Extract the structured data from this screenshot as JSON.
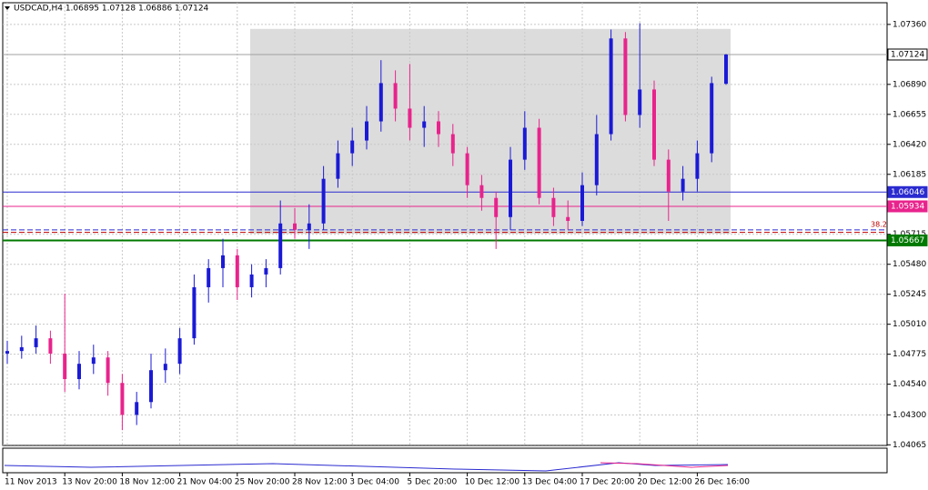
{
  "chart_data": {
    "type": "candlestick",
    "title": "USDCAD,H4  1.06895 1.07128 1.06886 1.07124",
    "up_color": "#1a1ad6",
    "down_color": "#e8238c",
    "open": [
      1.0478,
      1.048,
      1.0483,
      1.049,
      1.0478,
      1.0458,
      1.047,
      1.0475,
      1.0455,
      1.043,
      1.044,
      1.0465,
      1.047,
      1.049,
      1.053,
      1.0545,
      1.0555,
      1.053,
      1.054,
      1.0545,
      1.058,
      1.0575,
      1.058,
      1.0615,
      1.0635,
      1.0645,
      1.066,
      1.069,
      1.067,
      1.0655,
      1.066,
      1.065,
      1.0635,
      1.061,
      1.06,
      1.0585,
      1.063,
      1.0655,
      1.06,
      1.0585,
      1.0582,
      1.061,
      1.065,
      1.0725,
      1.0665,
      1.0685,
      1.063,
      1.0605,
      1.0615,
      1.0635,
      1.06895
    ],
    "high": [
      1.0488,
      1.0492,
      1.05,
      1.0496,
      1.0525,
      1.048,
      1.0485,
      1.048,
      1.0462,
      1.0448,
      1.0478,
      1.0482,
      1.0498,
      1.054,
      1.0552,
      1.0568,
      1.056,
      1.0548,
      1.0552,
      1.0598,
      1.0592,
      1.0595,
      1.0625,
      1.0645,
      1.0655,
      1.0672,
      1.0708,
      1.07,
      1.0705,
      1.0672,
      1.0668,
      1.0658,
      1.064,
      1.0618,
      1.0605,
      1.064,
      1.0668,
      1.0662,
      1.0608,
      1.0598,
      1.062,
      1.0665,
      1.0732,
      1.073,
      1.0737,
      1.0692,
      1.0638,
      1.0625,
      1.0645,
      1.0695,
      1.07128
    ],
    "low": [
      1.047,
      1.0474,
      1.0478,
      1.047,
      1.0448,
      1.045,
      1.0462,
      1.0445,
      1.0418,
      1.0422,
      1.0435,
      1.0455,
      1.0462,
      1.0485,
      1.0518,
      1.053,
      1.052,
      1.0522,
      1.053,
      1.054,
      1.0568,
      1.056,
      1.0575,
      1.0608,
      1.0625,
      1.0638,
      1.0652,
      1.066,
      1.0645,
      1.064,
      1.064,
      1.0625,
      1.06,
      1.059,
      1.056,
      1.0575,
      1.0622,
      1.0595,
      1.0578,
      1.0575,
      1.0578,
      1.0602,
      1.0645,
      1.066,
      1.0655,
      1.0625,
      1.0582,
      1.0598,
      1.0605,
      1.0628,
      1.06886
    ],
    "close": [
      1.048,
      1.0483,
      1.049,
      1.0478,
      1.0458,
      1.047,
      1.0475,
      1.0455,
      1.043,
      1.044,
      1.0465,
      1.047,
      1.049,
      1.053,
      1.0545,
      1.0555,
      1.053,
      1.054,
      1.0545,
      1.058,
      1.0575,
      1.058,
      1.0615,
      1.0635,
      1.0645,
      1.066,
      1.069,
      1.067,
      1.0655,
      1.066,
      1.065,
      1.0635,
      1.061,
      1.06,
      1.0585,
      1.063,
      1.0655,
      1.06,
      1.0585,
      1.0582,
      1.061,
      1.065,
      1.0725,
      1.0665,
      1.0685,
      1.063,
      1.0605,
      1.0615,
      1.0635,
      1.069,
      1.07124
    ],
    "x_labels": [
      "11 Nov 2013",
      "13 Nov 20:00",
      "18 Nov 12:00",
      "21 Nov 04:00",
      "25 Nov 20:00",
      "28 Nov 12:00",
      "3 Dec 04:00",
      "5 Dec 20:00",
      "10 Dec 12:00",
      "13 Dec 04:00",
      "17 Dec 20:00",
      "20 Dec 12:00",
      "26 Dec 16:00"
    ],
    "ylim": [
      1.0406,
      1.0753
    ],
    "yticks": [
      {
        "value": 1.0736,
        "label": "1.07360"
      },
      {
        "value": 1.0689,
        "label": "1.06890"
      },
      {
        "value": 1.06655,
        "label": "1.06655"
      },
      {
        "value": 1.0642,
        "label": "1.06420"
      },
      {
        "value": 1.06185,
        "label": "1.06185"
      },
      {
        "value": 1.05715,
        "label": "1.05715"
      },
      {
        "value": 1.0548,
        "label": "1.05480"
      },
      {
        "value": 1.05245,
        "label": "1.05245"
      },
      {
        "value": 1.0501,
        "label": "1.05010"
      },
      {
        "value": 1.04775,
        "label": "1.04775"
      },
      {
        "value": 1.0454,
        "label": "1.04540"
      },
      {
        "value": 1.043,
        "label": "1.04300"
      },
      {
        "value": 1.04065,
        "label": "1.04065"
      }
    ],
    "grid": true,
    "zone": {
      "low": 1.0572,
      "high": 1.07325,
      "color": "#dcdcdc"
    },
    "levels": [
      {
        "value": 1.07124,
        "label": "1.07124",
        "color": "#a0a0a0"
      },
      {
        "value": 1.06046,
        "label": "1.06046",
        "color": "#2a2ad0"
      },
      {
        "value": 1.05934,
        "label": "1.05934",
        "color": "#e8238c"
      },
      {
        "value": 1.05667,
        "label": "1.05667",
        "color": "#007a00"
      }
    ],
    "fib": {
      "label": "38.2",
      "lines": [
        {
          "value": 1.0575,
          "color": "#2a2ad0"
        },
        {
          "value": 1.0573,
          "color": "#c00000"
        }
      ]
    }
  }
}
